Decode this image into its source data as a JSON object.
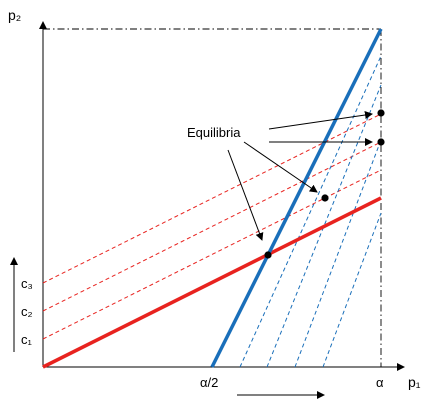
{
  "axes": {
    "x_label": "p₁",
    "y_label": "p₂",
    "x_tick_half": "α/2",
    "x_tick_full": "α"
  },
  "cost_labels": {
    "c1": "c₁",
    "c2": "c₂",
    "c3": "c₃"
  },
  "annotation": {
    "label": "Equilibria"
  },
  "colors": {
    "red": "#e8231f",
    "blue": "#1a6fba",
    "axis": "#000000"
  }
}
